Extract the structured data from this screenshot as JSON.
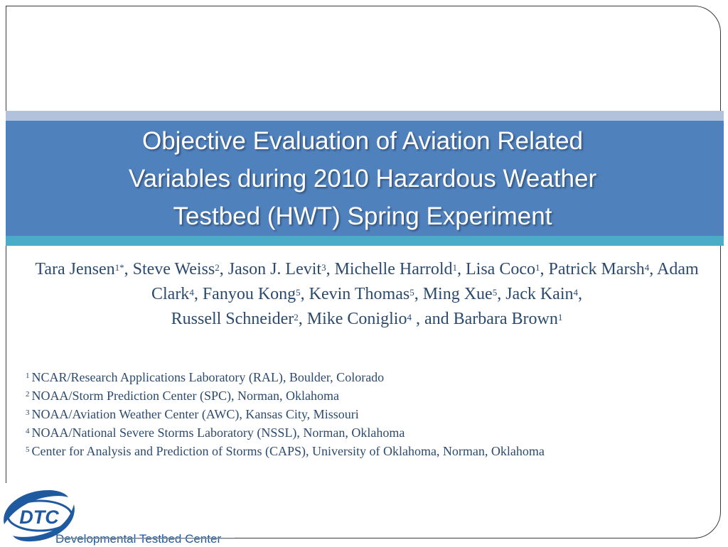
{
  "slide": {
    "title_lines": [
      "Objective Evaluation of Aviation Related",
      "Variables during 2010 Hazardous Weather",
      "Testbed (HWT) Spring Experiment"
    ],
    "authors": [
      {
        "name": "Tara Jensen",
        "sup": "1*",
        "sep": ", "
      },
      {
        "name": "Steve Weiss",
        "sup": "2",
        "sep": ", "
      },
      {
        "name": "Jason J. Levit",
        "sup": "3",
        "sep": ", "
      },
      {
        "name": "Michelle Harrold",
        "sup": "1",
        "sep": ",  "
      },
      {
        "name": "Lisa Coco",
        "sup": "1",
        "sep": ", "
      },
      {
        "name": "Patrick Marsh",
        "sup": "4",
        "sep": ", "
      },
      {
        "name": "Adam Clark",
        "sup": "4",
        "sep": ", "
      },
      {
        "name": "Fanyou Kong",
        "sup": "5",
        "sep": ", "
      },
      {
        "name": "Kevin Thomas",
        "sup": "5",
        "sep": ", "
      },
      {
        "name": "Ming Xue",
        "sup": "5",
        "sep": ", "
      },
      {
        "name": "Jack Kain",
        "sup": "4",
        "sep": ", "
      },
      {
        "name": "Russell Schneider",
        "sup": "2",
        "sep": ", "
      },
      {
        "name": "Mike Coniglio",
        "sup": "4",
        "sep": " , and "
      },
      {
        "name": "Barbara Brown",
        "sup": "1",
        "sep": ""
      }
    ],
    "affiliations": [
      {
        "num": "1",
        "text": "NCAR/Research Applications Laboratory (RAL), Boulder, Colorado"
      },
      {
        "num": "2",
        "text": "NOAA/Storm Prediction Center (SPC), Norman, Oklahoma"
      },
      {
        "num": "3",
        "text": "NOAA/Aviation Weather Center (AWC), Kansas City, Missouri"
      },
      {
        "num": "4",
        "text": "NOAA/National Severe Storms Laboratory (NSSL), Norman, Oklahoma"
      },
      {
        "num": "5",
        "text": "Center for Analysis and Prediction of Storms (CAPS), University of Oklahoma, Norman, Oklahoma"
      }
    ],
    "logo": {
      "acronym": "DTC",
      "name": "Developmental Testbed Center"
    },
    "colors": {
      "title_band": "#4f81bd",
      "top_stripe": "#b3c2db",
      "bottom_stripe": "#4aacc6",
      "body_text": "#2b4a6e",
      "logo_blue": "#1f5aa0"
    }
  }
}
